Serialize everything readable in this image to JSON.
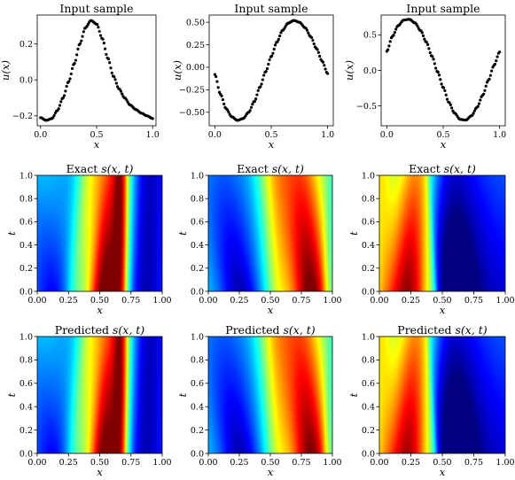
{
  "chart_data": [
    {
      "id": "p00",
      "type": "scatter",
      "title": "Input sample",
      "xlabel": "x",
      "ylabel": "u(x)",
      "xlim": [
        -0.03,
        1.03
      ],
      "ylim": [
        -0.255,
        0.36
      ],
      "xticks": [
        0.0,
        0.5,
        1.0
      ],
      "xtick_labels": [
        "0.0",
        "0.5",
        "1.0"
      ],
      "yticks": [
        -0.2,
        0.0,
        0.2
      ],
      "ytick_labels": [
        "−0.2",
        "0.0",
        "0.2"
      ],
      "points": {
        "n": 100,
        "x_range": [
          0.0,
          1.0
        ],
        "knots_x": [
          0.0,
          0.05,
          0.1,
          0.15,
          0.2,
          0.25,
          0.3,
          0.35,
          0.4,
          0.45,
          0.5,
          0.55,
          0.6,
          0.65,
          0.7,
          0.75,
          0.8,
          0.85,
          0.9,
          0.95,
          1.0
        ],
        "knots_y": [
          -0.21,
          -0.225,
          -0.215,
          -0.17,
          -0.1,
          -0.01,
          0.09,
          0.2,
          0.29,
          0.33,
          0.31,
          0.23,
          0.12,
          0.02,
          -0.05,
          -0.1,
          -0.14,
          -0.165,
          -0.185,
          -0.2,
          -0.215
        ]
      }
    },
    {
      "id": "p01",
      "type": "scatter",
      "title": "Input sample",
      "xlabel": "x",
      "ylabel": "u(x)",
      "xlim": [
        -0.05,
        1.05
      ],
      "ylim": [
        -0.65,
        0.58
      ],
      "xticks": [
        0.0,
        0.5,
        1.0
      ],
      "xtick_labels": [
        "0.0",
        "0.5",
        "1.0"
      ],
      "yticks": [
        -0.5,
        -0.25,
        0.0,
        0.25,
        0.5
      ],
      "ytick_labels": [
        "−0.50",
        "−0.25",
        "0.00",
        "0.25",
        "0.50"
      ],
      "points": {
        "n": 100,
        "x_range": [
          0.0,
          1.0
        ],
        "knots_x": [
          0.0,
          0.05,
          0.1,
          0.15,
          0.2,
          0.25,
          0.3,
          0.35,
          0.4,
          0.45,
          0.5,
          0.55,
          0.6,
          0.65,
          0.7,
          0.75,
          0.8,
          0.85,
          0.9,
          0.95,
          1.0
        ],
        "knots_y": [
          -0.08,
          -0.3,
          -0.46,
          -0.55,
          -0.59,
          -0.57,
          -0.5,
          -0.38,
          -0.22,
          -0.05,
          0.12,
          0.28,
          0.41,
          0.49,
          0.52,
          0.5,
          0.44,
          0.34,
          0.21,
          0.07,
          -0.07
        ]
      }
    },
    {
      "id": "p02",
      "type": "scatter",
      "title": "Input sample",
      "xlabel": "x",
      "ylabel": "u(x)",
      "xlim": [
        -0.05,
        1.05
      ],
      "ylim": [
        -0.78,
        0.78
      ],
      "xticks": [
        0.0,
        0.5,
        1.0
      ],
      "xtick_labels": [
        "0.0",
        "0.5",
        "1.0"
      ],
      "yticks": [
        -0.5,
        0.0,
        0.5
      ],
      "ytick_labels": [
        "−0.5",
        "0.0",
        "0.5"
      ],
      "points": {
        "n": 100,
        "x_range": [
          0.0,
          1.0
        ],
        "knots_x": [
          0.0,
          0.05,
          0.1,
          0.15,
          0.2,
          0.25,
          0.3,
          0.35,
          0.4,
          0.45,
          0.5,
          0.55,
          0.6,
          0.65,
          0.7,
          0.75,
          0.8,
          0.85,
          0.9,
          0.95,
          1.0
        ],
        "knots_y": [
          0.27,
          0.48,
          0.63,
          0.71,
          0.72,
          0.67,
          0.56,
          0.4,
          0.2,
          -0.02,
          -0.24,
          -0.45,
          -0.6,
          -0.69,
          -0.7,
          -0.64,
          -0.52,
          -0.35,
          -0.14,
          0.07,
          0.26
        ]
      }
    },
    {
      "id": "p10",
      "type": "heatmap",
      "title": "Exact s(x, t)",
      "xlabel": "x",
      "ylabel": "t",
      "xlim": [
        0.0,
        1.0
      ],
      "ylim": [
        0.0,
        1.0
      ],
      "xticks": [
        0.0,
        0.25,
        0.5,
        0.75,
        1.0
      ],
      "xtick_labels": [
        "0.00",
        "0.25",
        "0.50",
        "0.75",
        "1.00"
      ],
      "yticks": [
        0.0,
        0.2,
        0.4,
        0.6,
        0.8,
        1.0
      ],
      "ytick_labels": [
        "0.0",
        "0.2",
        "0.4",
        "0.6",
        "0.8",
        "1.0"
      ],
      "colormap": "jet",
      "field": {
        "mode": "waves",
        "bg": 0.26,
        "features": [
          {
            "x0": 0.55,
            "x1": 0.6,
            "w0": 0.11,
            "w1": 0.12,
            "a0": 0.82,
            "a1": 0.56
          },
          {
            "x0": 0.12,
            "x1": 0.05,
            "w0": 0.1,
            "w1": 0.13,
            "a0": -0.14,
            "a1": 0.05
          },
          {
            "x0": 0.67,
            "x1": 0.67,
            "w0": 0.04,
            "w1": 0.04,
            "a0": 0.3,
            "a1": 0.3
          },
          {
            "x0": 0.86,
            "x1": 0.88,
            "w0": 0.12,
            "w1": 0.12,
            "a0": -0.22,
            "a1": -0.22
          },
          {
            "x0": 0.3,
            "x1": 0.4,
            "w0": 0.06,
            "w1": 0.07,
            "a0": 0.15,
            "a1": 0.18
          }
        ]
      }
    },
    {
      "id": "p11",
      "type": "heatmap",
      "title": "Exact s(x, t)",
      "xlabel": "x",
      "ylabel": "t",
      "xlim": [
        0.0,
        1.0
      ],
      "ylim": [
        0.0,
        1.0
      ],
      "xticks": [
        0.0,
        0.25,
        0.5,
        0.75,
        1.0
      ],
      "xtick_labels": [
        "0.00",
        "0.25",
        "0.50",
        "0.75",
        "1.00"
      ],
      "yticks": [
        0.0,
        0.2,
        0.4,
        0.6,
        0.8,
        1.0
      ],
      "ytick_labels": [
        "0.0",
        "0.2",
        "0.4",
        "0.6",
        "0.8",
        "1.0"
      ],
      "colormap": "jet",
      "field": {
        "mode": "waves",
        "bg": 0.33,
        "features": [
          {
            "x0": 0.83,
            "x1": 0.74,
            "w0": 0.13,
            "w1": 0.15,
            "a0": 0.7,
            "a1": 0.48
          },
          {
            "x0": 0.25,
            "x1": 0.12,
            "w0": 0.12,
            "w1": 0.16,
            "a0": -0.28,
            "a1": -0.12
          },
          {
            "x0": 0.56,
            "x1": 0.52,
            "w0": 0.08,
            "w1": 0.09,
            "a0": 0.2,
            "a1": 0.2
          },
          {
            "x0": 0.98,
            "x1": 0.98,
            "w0": 0.04,
            "w1": 0.04,
            "a0": -0.15,
            "a1": 0.0
          }
        ]
      }
    },
    {
      "id": "p12",
      "type": "heatmap",
      "title": "Exact s(x, t)",
      "xlabel": "x",
      "ylabel": "t",
      "xlim": [
        0.0,
        1.0
      ],
      "ylim": [
        0.0,
        1.0
      ],
      "xticks": [
        0.0,
        0.25,
        0.5,
        0.75,
        1.0
      ],
      "xtick_labels": [
        "0.00",
        "0.25",
        "0.50",
        "0.75",
        "1.00"
      ],
      "yticks": [
        0.0,
        0.2,
        0.4,
        0.6,
        0.8,
        1.0
      ],
      "ytick_labels": [
        "0.0",
        "0.2",
        "0.4",
        "0.6",
        "0.8",
        "1.0"
      ],
      "colormap": "jet",
      "field": {
        "mode": "shock",
        "bg": 0.38,
        "shock_x0": 0.45,
        "shock_x1": 0.39,
        "features": [
          {
            "x0": 0.22,
            "x1": 0.3,
            "w0": 0.13,
            "w1": 0.12,
            "a0": 0.6,
            "a1": 0.42
          },
          {
            "x0": 0.0,
            "x1": 0.0,
            "w0": 0.08,
            "w1": 0.08,
            "a0": 0.15,
            "a1": 0.25
          },
          {
            "x0": 0.62,
            "x1": 0.54,
            "w0": 0.12,
            "w1": 0.18,
            "a0": -0.28,
            "a1": -0.15
          },
          {
            "x0": 0.9,
            "x1": 0.9,
            "w0": 0.16,
            "w1": 0.18,
            "a0": -0.05,
            "a1": 0.0
          }
        ]
      }
    },
    {
      "id": "p20",
      "type": "heatmap",
      "title": "Predicted s(x, t)",
      "xlabel": "x",
      "ylabel": "t",
      "xlim": [
        0.0,
        1.0
      ],
      "ylim": [
        0.0,
        1.0
      ],
      "xticks": [
        0.0,
        0.25,
        0.5,
        0.75,
        1.0
      ],
      "xtick_labels": [
        "0.00",
        "0.25",
        "0.50",
        "0.75",
        "1.00"
      ],
      "yticks": [
        0.0,
        0.2,
        0.4,
        0.6,
        0.8,
        1.0
      ],
      "ytick_labels": [
        "0.0",
        "0.2",
        "0.4",
        "0.6",
        "0.8",
        "1.0"
      ],
      "colormap": "jet",
      "field": {
        "mode": "waves",
        "bg": 0.26,
        "features": [
          {
            "x0": 0.55,
            "x1": 0.6,
            "w0": 0.11,
            "w1": 0.12,
            "a0": 0.8,
            "a1": 0.55
          },
          {
            "x0": 0.12,
            "x1": 0.05,
            "w0": 0.1,
            "w1": 0.13,
            "a0": -0.14,
            "a1": 0.05
          },
          {
            "x0": 0.67,
            "x1": 0.67,
            "w0": 0.04,
            "w1": 0.04,
            "a0": 0.3,
            "a1": 0.3
          },
          {
            "x0": 0.86,
            "x1": 0.88,
            "w0": 0.12,
            "w1": 0.12,
            "a0": -0.22,
            "a1": -0.22
          },
          {
            "x0": 0.3,
            "x1": 0.4,
            "w0": 0.06,
            "w1": 0.07,
            "a0": 0.15,
            "a1": 0.18
          }
        ]
      }
    },
    {
      "id": "p21",
      "type": "heatmap",
      "title": "Predicted s(x, t)",
      "xlabel": "x",
      "ylabel": "t",
      "xlim": [
        0.0,
        1.0
      ],
      "ylim": [
        0.0,
        1.0
      ],
      "xticks": [
        0.0,
        0.25,
        0.5,
        0.75,
        1.0
      ],
      "xtick_labels": [
        "0.00",
        "0.25",
        "0.50",
        "0.75",
        "1.00"
      ],
      "yticks": [
        0.0,
        0.2,
        0.4,
        0.6,
        0.8,
        1.0
      ],
      "ytick_labels": [
        "0.0",
        "0.2",
        "0.4",
        "0.6",
        "0.8",
        "1.0"
      ],
      "colormap": "jet",
      "field": {
        "mode": "waves",
        "bg": 0.33,
        "features": [
          {
            "x0": 0.83,
            "x1": 0.74,
            "w0": 0.13,
            "w1": 0.15,
            "a0": 0.68,
            "a1": 0.47
          },
          {
            "x0": 0.25,
            "x1": 0.12,
            "w0": 0.12,
            "w1": 0.16,
            "a0": -0.28,
            "a1": -0.12
          },
          {
            "x0": 0.56,
            "x1": 0.52,
            "w0": 0.08,
            "w1": 0.09,
            "a0": 0.2,
            "a1": 0.2
          },
          {
            "x0": 0.98,
            "x1": 0.98,
            "w0": 0.04,
            "w1": 0.04,
            "a0": -0.15,
            "a1": 0.0
          }
        ]
      }
    },
    {
      "id": "p22",
      "type": "heatmap",
      "title": "Predicted s(x, t)",
      "xlabel": "x",
      "ylabel": "t",
      "xlim": [
        0.0,
        1.0
      ],
      "ylim": [
        0.0,
        1.0
      ],
      "xticks": [
        0.0,
        0.25,
        0.5,
        0.75,
        1.0
      ],
      "xtick_labels": [
        "0.00",
        "0.25",
        "0.50",
        "0.75",
        "1.00"
      ],
      "yticks": [
        0.0,
        0.2,
        0.4,
        0.6,
        0.8,
        1.0
      ],
      "ytick_labels": [
        "0.0",
        "0.2",
        "0.4",
        "0.6",
        "0.8",
        "1.0"
      ],
      "colormap": "jet",
      "field": {
        "mode": "shock",
        "bg": 0.38,
        "shock_x0": 0.45,
        "shock_x1": 0.39,
        "features": [
          {
            "x0": 0.22,
            "x1": 0.3,
            "w0": 0.13,
            "w1": 0.12,
            "a0": 0.58,
            "a1": 0.42
          },
          {
            "x0": 0.0,
            "x1": 0.0,
            "w0": 0.08,
            "w1": 0.08,
            "a0": 0.15,
            "a1": 0.25
          },
          {
            "x0": 0.62,
            "x1": 0.54,
            "w0": 0.12,
            "w1": 0.18,
            "a0": -0.28,
            "a1": -0.15
          },
          {
            "x0": 0.9,
            "x1": 0.9,
            "w0": 0.16,
            "w1": 0.18,
            "a0": -0.05,
            "a1": 0.0
          }
        ]
      }
    }
  ]
}
